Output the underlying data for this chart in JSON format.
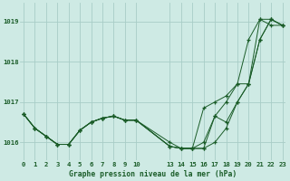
{
  "title": "Graphe pression niveau de la mer (hPa)",
  "bg_color": "#ceeae4",
  "grid_color": "#a8cdc7",
  "line_color": "#1a5c28",
  "yticks": [
    1016,
    1017,
    1018,
    1019
  ],
  "ylim": [
    1015.55,
    1019.45
  ],
  "xlim": [
    -0.3,
    23.3
  ],
  "xticks_left": [
    0,
    1,
    2,
    3,
    4,
    5,
    6,
    7,
    8,
    9,
    10
  ],
  "xticks_right": [
    13,
    14,
    15,
    16,
    17,
    18,
    19,
    20,
    21,
    22,
    23
  ],
  "series": [
    {
      "x": [
        0,
        1,
        2,
        3,
        4,
        5,
        6,
        7,
        8,
        9,
        10,
        13,
        14,
        15,
        16,
        17,
        18,
        19,
        20,
        21,
        22,
        23
      ],
      "y": [
        1016.7,
        1016.35,
        1016.15,
        1015.95,
        1015.95,
        1016.3,
        1016.5,
        1016.6,
        1016.65,
        1016.55,
        1016.55,
        1015.9,
        1015.85,
        1015.85,
        1015.85,
        1016.0,
        1016.35,
        1017.0,
        1017.45,
        1019.05,
        1019.05,
        1018.9
      ]
    },
    {
      "x": [
        0,
        1,
        2,
        3,
        4,
        5,
        6,
        7,
        8,
        9,
        10,
        13,
        14,
        15,
        16,
        17,
        18,
        19,
        20,
        21,
        22,
        23
      ],
      "y": [
        1016.7,
        1016.35,
        1016.15,
        1015.95,
        1015.95,
        1016.3,
        1016.5,
        1016.6,
        1016.65,
        1016.55,
        1016.55,
        1015.9,
        1015.85,
        1015.85,
        1015.85,
        1016.65,
        1017.0,
        1017.45,
        1018.55,
        1019.05,
        1018.9,
        1018.9
      ]
    },
    {
      "x": [
        0,
        1,
        2,
        3,
        4,
        5,
        6,
        7,
        8,
        9,
        10,
        13,
        14,
        15,
        16,
        17,
        18,
        19,
        20,
        21,
        22,
        23
      ],
      "y": [
        1016.7,
        1016.35,
        1016.15,
        1015.95,
        1015.95,
        1016.3,
        1016.5,
        1016.6,
        1016.65,
        1016.55,
        1016.55,
        1015.9,
        1015.85,
        1015.85,
        1016.85,
        1017.0,
        1017.15,
        1017.45,
        1017.45,
        1018.55,
        1019.05,
        1018.9
      ]
    },
    {
      "x": [
        0,
        1,
        2,
        3,
        4,
        5,
        6,
        7,
        8,
        9,
        10,
        13,
        14,
        15,
        16,
        17,
        18,
        19,
        20,
        21,
        22,
        23
      ],
      "y": [
        1016.7,
        1016.35,
        1016.15,
        1015.95,
        1015.95,
        1016.3,
        1016.5,
        1016.6,
        1016.65,
        1016.55,
        1016.55,
        1016.0,
        1015.85,
        1015.85,
        1016.0,
        1016.65,
        1016.5,
        1017.0,
        1017.45,
        1018.55,
        1019.05,
        1018.9
      ]
    }
  ]
}
